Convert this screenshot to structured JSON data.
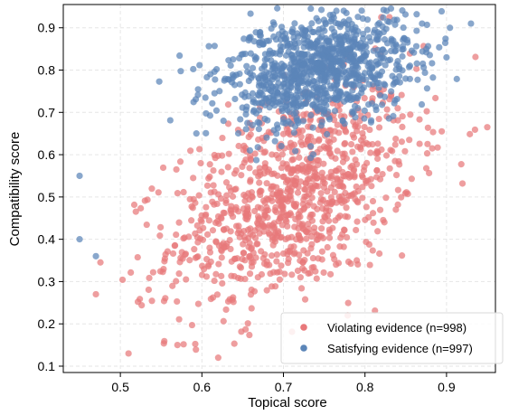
{
  "chart_data": {
    "type": "scatter",
    "title": "",
    "xlabel": "Topical score",
    "ylabel": "Compatibility score",
    "xlim": [
      0.43,
      0.96
    ],
    "ylim": [
      0.085,
      0.955
    ],
    "xticks": [
      0.5,
      0.6,
      0.7,
      0.8,
      0.9
    ],
    "yticks": [
      0.1,
      0.2,
      0.3,
      0.4,
      0.5,
      0.6,
      0.7,
      0.8,
      0.9
    ],
    "grid": true,
    "legend_position": "bottom-right",
    "series": [
      {
        "name": "Violating evidence (n=998)",
        "color": "#e8787a",
        "n": 998,
        "center": [
          0.71,
          0.5
        ],
        "spread": [
          0.075,
          0.13
        ],
        "correlation": 0.45,
        "notable_points": [
          [
            0.51,
            0.13
          ],
          [
            0.57,
            0.15
          ],
          [
            0.62,
            0.12
          ],
          [
            0.47,
            0.27
          ],
          [
            0.95,
            0.665
          ],
          [
            0.83,
            0.925
          ],
          [
            0.82,
            0.925
          ]
        ]
      },
      {
        "name": "Satisfying evidence (n=997)",
        "color": "#5b85b8",
        "n": 997,
        "center": [
          0.74,
          0.8
        ],
        "spread": [
          0.06,
          0.07
        ],
        "correlation": 0.3,
        "notable_points": [
          [
            0.45,
            0.55
          ],
          [
            0.45,
            0.4
          ],
          [
            0.47,
            0.36
          ],
          [
            0.93,
            0.91
          ],
          [
            0.87,
            0.91
          ],
          [
            0.9,
            0.83
          ]
        ]
      }
    ]
  }
}
